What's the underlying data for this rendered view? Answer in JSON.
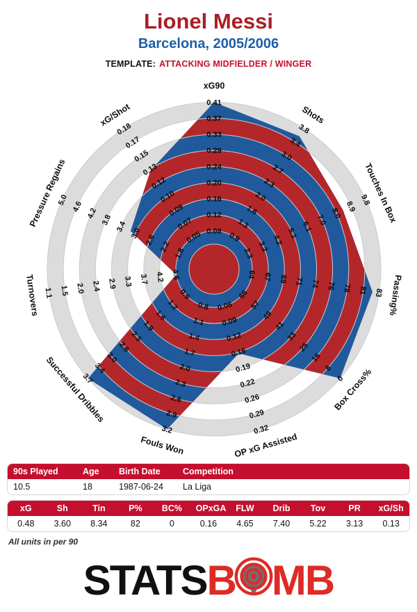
{
  "header": {
    "title": "Lionel Messi",
    "subtitle": "Barcelona, 2005/2006",
    "template_label": "TEMPLATE:",
    "template_value": "ATTACKING MIDFIELDER / WINGER"
  },
  "colors": {
    "accent_red": "#c50f2e",
    "title_red": "#a91e25",
    "subtitle_blue": "#1d5fa7",
    "radar_red": "#b3272a",
    "radar_blue": "#205a9c",
    "ring_gray": "#dcdcdc",
    "ring_line": "#c9cbd1",
    "logo_red": "#dd2b26",
    "logo_black": "#111111"
  },
  "chart_data": {
    "type": "radar",
    "title": "StatsBomb attacking midfielder / winger radar",
    "axes_count": 11,
    "rings_per_axis": 9,
    "legend_position": "none",
    "grid": "concentric-circles",
    "axes": [
      {
        "label": "xG90",
        "ticks": [
          "0.08",
          "0.12",
          "0.16",
          "0.20",
          "0.24",
          "0.29",
          "0.33",
          "0.37",
          "0.41"
        ],
        "value": 0.48
      },
      {
        "label": "Shots",
        "ticks": [
          "0.9",
          "1.3",
          "1.6",
          "2.0",
          "2.3",
          "2.7",
          "3.0",
          "3.4",
          "3.8"
        ],
        "value": 3.6
      },
      {
        "label": "Touches In Box",
        "ticks": [
          "2.3",
          "3.2",
          "4.2",
          "5.1",
          "6.1",
          "7.0",
          "8.0",
          "8.9",
          "9.8"
        ],
        "value": 8.34
      },
      {
        "label": "Passing%",
        "ticks": [
          "64",
          "67",
          "69",
          "71",
          "74",
          "76",
          "78",
          "81",
          "83"
        ],
        "value": 82
      },
      {
        "label": "Box Cross%",
        "ticks": [
          "66",
          "57",
          "49",
          "41",
          "33",
          "25",
          "16",
          "8",
          "0"
        ],
        "value": 0
      },
      {
        "label": "OP xG Assisted",
        "ticks": [
          "0.06",
          "0.09",
          "0.12",
          "0.16",
          "0.19",
          "0.22",
          "0.26",
          "0.29",
          "0.32"
        ],
        "value": 0.16
      },
      {
        "label": "Fouls Won",
        "ticks": [
          "0.8",
          "1.1",
          "1.4",
          "1.7",
          "2.0",
          "2.3",
          "2.6",
          "2.9",
          "3.2"
        ],
        "value": 4.65
      },
      {
        "label": "Successful Dribbles",
        "ticks": [
          "0.9",
          "1.2",
          "1.6",
          "1.9",
          "2.3",
          "2.6",
          "3.0",
          "3.4",
          "3.7"
        ],
        "value": 7.4
      },
      {
        "label": "Turnovers",
        "ticks": [
          "4.6",
          "4.2",
          "3.7",
          "3.3",
          "2.9",
          "2.4",
          "2.0",
          "1.5",
          "1.1"
        ],
        "value": 5.22
      },
      {
        "label": "Pressure Regains",
        "ticks": [
          "1.8",
          "2.2",
          "2.6",
          "3.0",
          "3.4",
          "3.8",
          "4.2",
          "4.6",
          "5.0"
        ],
        "value": 3.13
      },
      {
        "label": "xG/Shot",
        "ticks": [
          "0.05",
          "0.07",
          "0.09",
          "0.10",
          "0.12",
          "0.13",
          "0.15",
          "0.17",
          "0.18"
        ],
        "value": 0.13
      }
    ]
  },
  "info_table": {
    "headers": [
      "90s Played",
      "Age",
      "Birth Date",
      "Competition"
    ],
    "values": [
      "10.5",
      "18",
      "1987-06-24",
      "La Liga"
    ]
  },
  "stats_table": {
    "headers": [
      "xG",
      "Sh",
      "Tin",
      "P%",
      "BC%",
      "OPxGA",
      "FLW",
      "Drib",
      "Tov",
      "PR",
      "xG/Sh"
    ],
    "values": [
      "0.48",
      "3.60",
      "8.34",
      "82",
      "0",
      "0.16",
      "4.65",
      "7.40",
      "5.22",
      "3.13",
      "0.13"
    ]
  },
  "footnote": "All units in per 90",
  "logo": {
    "stats": "STATS",
    "b": "B",
    "mb": "MB"
  }
}
